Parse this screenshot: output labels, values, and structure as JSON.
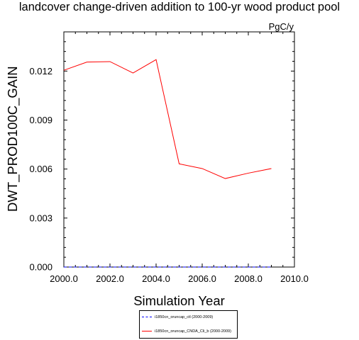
{
  "chart_data": {
    "type": "line",
    "title": "landcover change-driven addition to 100-yr wood product pool",
    "units": "PgC/y",
    "xlabel": "Simulation Year",
    "ylabel": "DWT_PROD100C_GAIN",
    "xlim": [
      2000.0,
      2010.0
    ],
    "ylim": [
      0.0,
      0.0144
    ],
    "xticks": [
      "2000.0",
      "2002.0",
      "2004.0",
      "2006.0",
      "2008.0",
      "2010.0"
    ],
    "yticks": [
      "0.000",
      "0.003",
      "0.006",
      "0.009",
      "0.012"
    ],
    "x": [
      2000,
      2001,
      2002,
      2003,
      2004,
      2005,
      2006,
      2007,
      2008,
      2009
    ],
    "series": [
      {
        "name": "i1850cn_oruncap_ctl (2000-2009)",
        "color": "#0000ff",
        "dashed": true,
        "values": [
          0,
          0,
          0,
          0,
          0,
          0,
          0,
          0,
          0,
          0
        ]
      },
      {
        "name": "i1850cn_oruncap_CNDA_Cli_b (2000-2009)",
        "color": "#ff0000",
        "dashed": false,
        "values": [
          0.01205,
          0.01255,
          0.01258,
          0.01188,
          0.0127,
          0.00632,
          0.00603,
          0.00542,
          0.00575,
          0.00603
        ]
      }
    ],
    "grid": false,
    "legend": "bottom-center"
  }
}
